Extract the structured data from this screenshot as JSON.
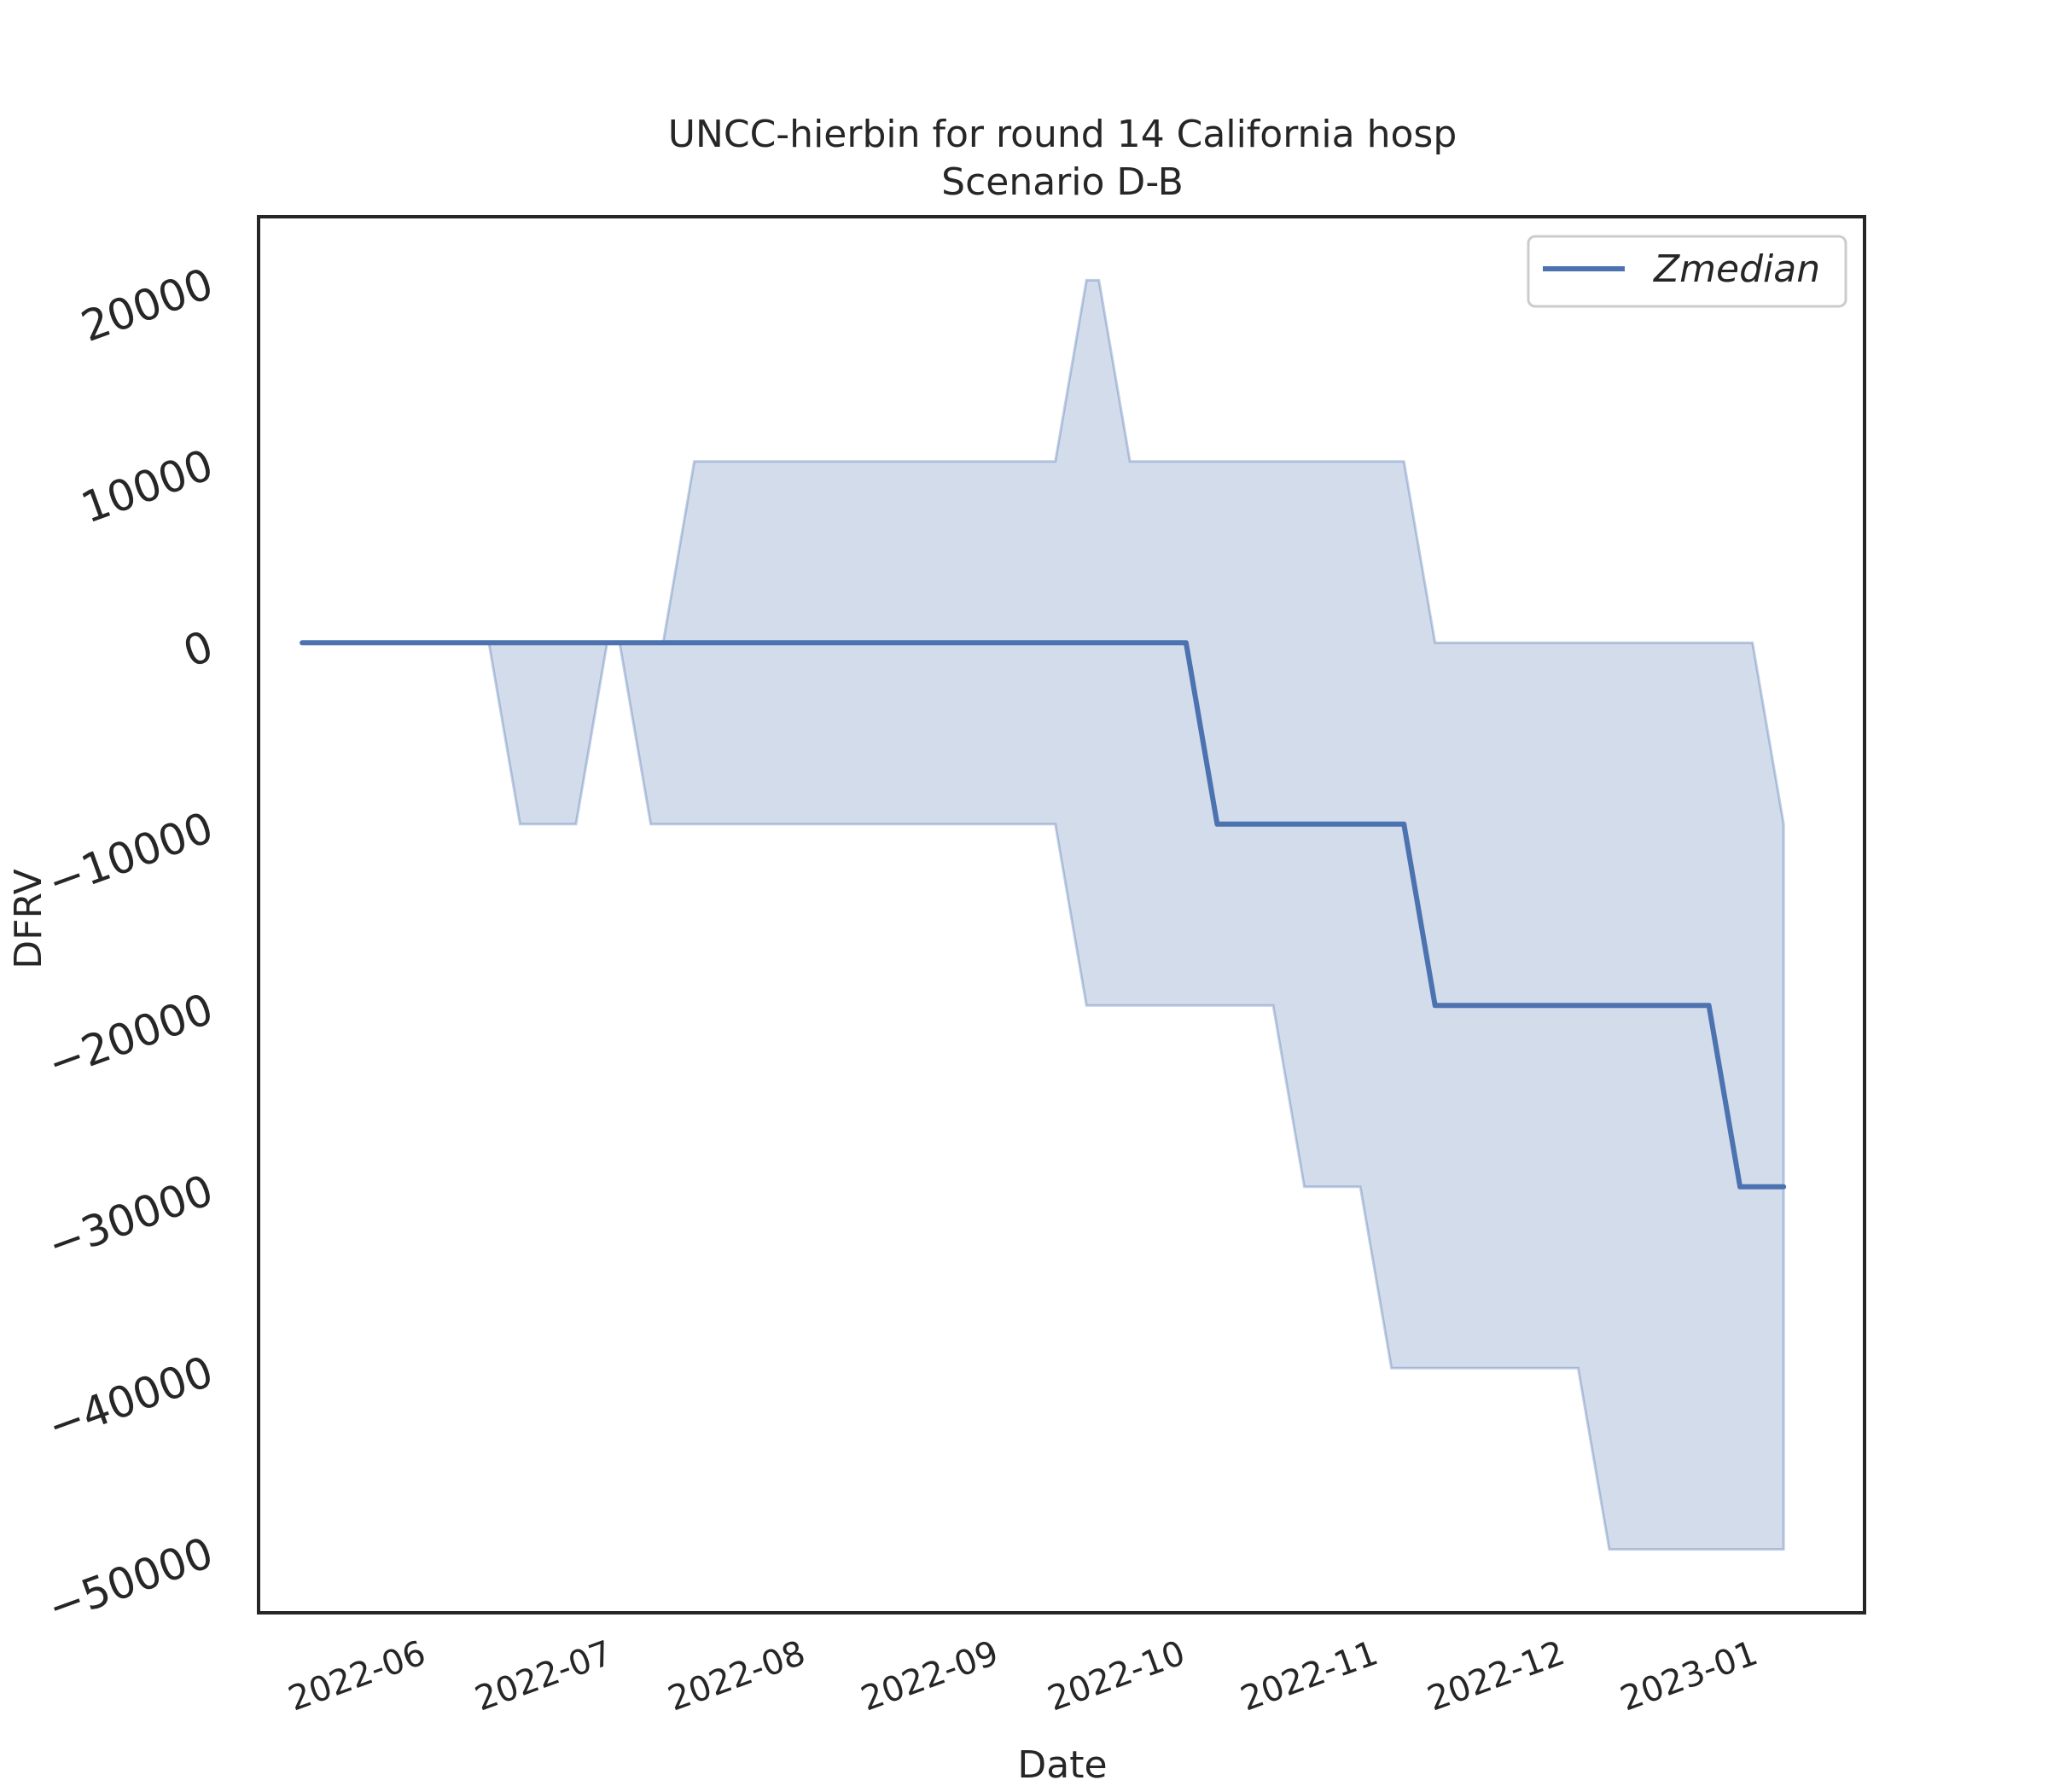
{
  "chart_data": {
    "type": "line",
    "title": "UNCC-hierbin for round 14 California hosp",
    "subtitle": "Scenario D-B",
    "xlabel": "Date",
    "ylabel": "DFRV",
    "xlim": [
      "2022-05-07",
      "2023-01-20"
    ],
    "ylim": [
      -53500,
      23500
    ],
    "yticks": [
      20000,
      10000,
      0,
      -10000,
      -20000,
      -30000,
      -40000,
      -50000
    ],
    "ytick_labels": [
      "20000",
      "10000",
      "0",
      "−10000",
      "−20000",
      "−30000",
      "−40000",
      "−50000"
    ],
    "xtick_dates": [
      "2022-06-01",
      "2022-07-01",
      "2022-08-01",
      "2022-09-01",
      "2022-10-01",
      "2022-11-01",
      "2022-12-01",
      "2023-01-01"
    ],
    "xtick_labels": [
      "2022-06",
      "2022-07",
      "2022-08",
      "2022-09",
      "2022-10",
      "2022-11",
      "2022-12",
      "2023-01"
    ],
    "legend": {
      "position": "top-right",
      "entries": [
        "Zmedian"
      ]
    },
    "grid": false,
    "x": [
      "2022-05-14",
      "2022-05-21",
      "2022-05-28",
      "2022-06-04",
      "2022-06-11",
      "2022-06-18",
      "2022-06-25",
      "2022-07-02",
      "2022-07-09",
      "2022-07-16",
      "2022-07-23",
      "2022-07-30",
      "2022-08-06",
      "2022-08-13",
      "2022-08-20",
      "2022-08-27",
      "2022-09-03",
      "2022-09-10",
      "2022-09-17",
      "2022-09-24",
      "2022-10-01",
      "2022-10-08",
      "2022-10-15",
      "2022-10-22",
      "2022-10-29",
      "2022-11-05",
      "2022-11-12",
      "2022-11-19",
      "2022-11-26",
      "2022-12-03",
      "2022-12-10",
      "2022-12-17",
      "2022-12-24",
      "2022-12-31",
      "2023-01-07"
    ],
    "series": [
      {
        "name": "Zmedian",
        "color": "#4c72b0",
        "values": [
          0,
          0,
          0,
          0,
          0,
          0,
          0,
          0,
          0,
          0,
          0,
          0,
          0,
          0,
          0,
          0,
          0,
          0,
          0,
          0,
          0,
          -10000,
          -10000,
          -10000,
          -10000,
          -10000,
          -20000,
          -20000,
          -20000,
          -20000,
          -20000,
          -20000,
          -20000,
          -30000,
          -30000
        ]
      }
    ],
    "band": {
      "color": "#4c72b0",
      "opacity": 0.25,
      "upper": [
        0,
        0,
        0,
        0,
        0,
        0,
        0,
        0,
        0,
        10000,
        10000,
        10000,
        10000,
        10000,
        10000,
        10000,
        10000,
        10000,
        20000,
        10000,
        10000,
        10000,
        10000,
        10000,
        10000,
        10000,
        0,
        0,
        0,
        0,
        0,
        0,
        0,
        0,
        -10000
      ],
      "lower": [
        0,
        0,
        0,
        0,
        0,
        -10000,
        -10000,
        0,
        -10000,
        -10000,
        -10000,
        -10000,
        -10000,
        -10000,
        -10000,
        -10000,
        -10000,
        -10000,
        -20000,
        -20000,
        -20000,
        -20000,
        -20000,
        -30000,
        -30000,
        -40000,
        -40000,
        -40000,
        -40000,
        -40000,
        -50000,
        -50000,
        -50000,
        -50000,
        -50000
      ]
    }
  }
}
